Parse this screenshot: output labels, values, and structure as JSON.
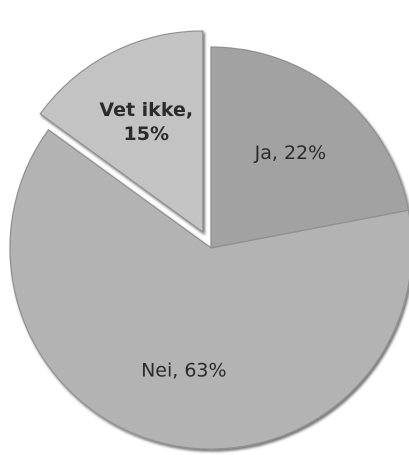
{
  "chart_data": {
    "type": "pie",
    "title": "",
    "slices": [
      {
        "label": "Ja",
        "value": 22,
        "display": "Ja, 22%",
        "lines": [
          "Ja, 22%"
        ],
        "color": "#a2a2a2",
        "exploded": false,
        "bold": false
      },
      {
        "label": "Nei",
        "value": 63,
        "display": "Nei, 63%",
        "lines": [
          "Nei, 63%"
        ],
        "color": "#b3b3b3",
        "exploded": false,
        "bold": false
      },
      {
        "label": "Vet ikke",
        "value": 15,
        "display": "Vet ikke, 15%",
        "lines": [
          "Vet ikke,",
          "15%"
        ],
        "color": "#c3c3c3",
        "exploded": true,
        "bold": true
      }
    ],
    "legend": "none",
    "grid": false
  }
}
